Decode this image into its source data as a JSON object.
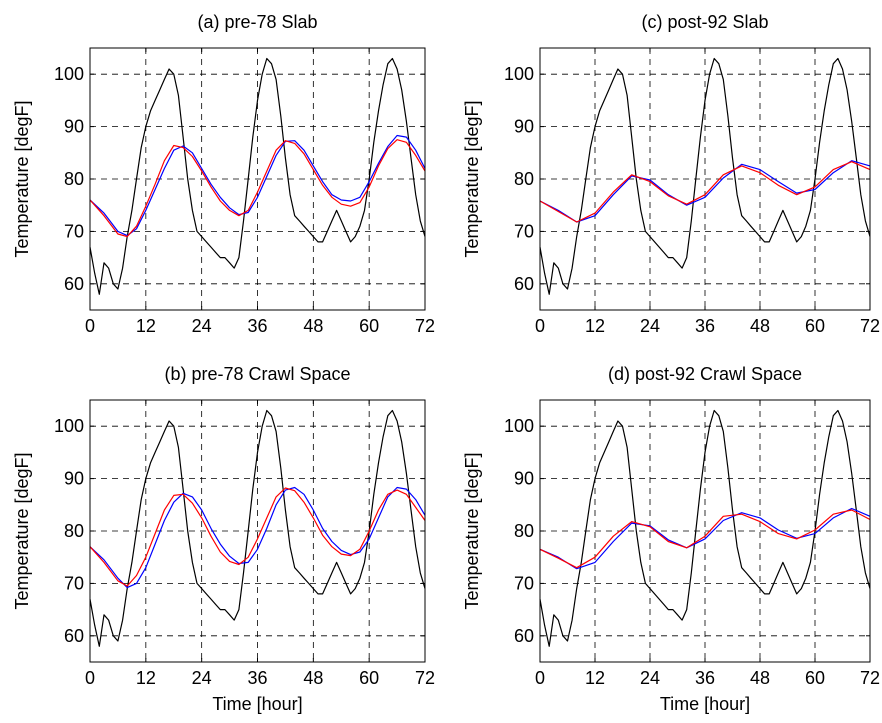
{
  "chart_data": [
    {
      "type": "line",
      "title": "(a) pre-78 Slab",
      "xlabel": "",
      "ylabel": "Temperature [degF]",
      "xlim": [
        0,
        72
      ],
      "ylim": [
        55,
        105
      ],
      "xticks": [
        0,
        12,
        24,
        36,
        48,
        60,
        72
      ],
      "yticks": [
        60,
        70,
        80,
        90,
        100
      ],
      "grid": true,
      "series": [
        {
          "color": "#000000",
          "x": [
            0,
            1,
            2,
            3,
            4,
            5,
            6,
            7,
            8,
            9,
            10,
            11,
            12,
            13,
            14,
            15,
            16,
            17,
            18,
            19,
            20,
            21,
            22,
            23,
            24,
            25,
            26,
            27,
            28,
            29,
            30,
            31,
            32,
            33,
            34,
            35,
            36,
            37,
            38,
            39,
            40,
            41,
            42,
            43,
            44,
            45,
            46,
            47,
            48,
            49,
            50,
            51,
            52,
            53,
            54,
            55,
            56,
            57,
            58,
            59,
            60,
            61,
            62,
            63,
            64,
            65,
            66,
            67,
            68,
            69,
            70,
            71,
            72
          ],
          "values": [
            67,
            62,
            58,
            64,
            63,
            60,
            59,
            63,
            69,
            74,
            80,
            86,
            90,
            93,
            95,
            97,
            99,
            101,
            100,
            96,
            88,
            80,
            74,
            70,
            69,
            68,
            67,
            66,
            65,
            65,
            64,
            63,
            65,
            72,
            80,
            88,
            95,
            100,
            103,
            102,
            99,
            92,
            84,
            77,
            73,
            72,
            71,
            70,
            69,
            68,
            68,
            70,
            72,
            74,
            72,
            70,
            68,
            69,
            71,
            74,
            80,
            87,
            93,
            98,
            102,
            103,
            101,
            97,
            91,
            84,
            77,
            72,
            69
          ]
        },
        {
          "color": "#0000ff",
          "x": [
            0,
            3,
            6,
            8,
            10,
            12,
            14,
            16,
            18,
            20,
            22,
            24,
            26,
            28,
            30,
            32,
            34,
            36,
            38,
            40,
            42,
            44,
            46,
            48,
            50,
            52,
            54,
            56,
            58,
            60,
            62,
            64,
            66,
            68,
            70,
            72
          ],
          "values": [
            76,
            73.5,
            70,
            69.2,
            70.5,
            74,
            78,
            82,
            85.5,
            86.3,
            85,
            82,
            79,
            76.5,
            74.5,
            73.2,
            73.6,
            76.5,
            80.5,
            84.5,
            87.2,
            87.3,
            85.5,
            82.5,
            79.5,
            77,
            76,
            75.8,
            76.5,
            79.5,
            83,
            86.2,
            88.3,
            88,
            85.5,
            82
          ]
        },
        {
          "color": "#ff0000",
          "x": [
            0,
            3,
            6,
            8,
            10,
            12,
            14,
            16,
            18,
            20,
            22,
            24,
            26,
            28,
            30,
            32,
            34,
            36,
            38,
            40,
            42,
            44,
            46,
            48,
            50,
            52,
            54,
            56,
            58,
            60,
            62,
            64,
            66,
            68,
            70,
            72
          ],
          "values": [
            76,
            73,
            69.5,
            69,
            71,
            74.8,
            79,
            83.5,
            86.4,
            86,
            84.3,
            81.5,
            78.5,
            75.8,
            74,
            73,
            74,
            77.5,
            81.5,
            85.5,
            87.3,
            86.8,
            84.8,
            81.8,
            78.8,
            76.5,
            75.2,
            74.8,
            75.5,
            78.5,
            82.5,
            85.8,
            87.5,
            87,
            84.5,
            81.5
          ]
        }
      ]
    },
    {
      "type": "line",
      "title": "(c) post-92 Slab",
      "xlabel": "",
      "ylabel": "Temperature [degF]",
      "xlim": [
        0,
        72
      ],
      "ylim": [
        55,
        105
      ],
      "xticks": [
        0,
        12,
        24,
        36,
        48,
        60,
        72
      ],
      "yticks": [
        60,
        70,
        80,
        90,
        100
      ],
      "grid": true,
      "series": [
        {
          "color": "#000000",
          "x": [
            0,
            1,
            2,
            3,
            4,
            5,
            6,
            7,
            8,
            9,
            10,
            11,
            12,
            13,
            14,
            15,
            16,
            17,
            18,
            19,
            20,
            21,
            22,
            23,
            24,
            25,
            26,
            27,
            28,
            29,
            30,
            31,
            32,
            33,
            34,
            35,
            36,
            37,
            38,
            39,
            40,
            41,
            42,
            43,
            44,
            45,
            46,
            47,
            48,
            49,
            50,
            51,
            52,
            53,
            54,
            55,
            56,
            57,
            58,
            59,
            60,
            61,
            62,
            63,
            64,
            65,
            66,
            67,
            68,
            69,
            70,
            71,
            72
          ],
          "values": [
            67,
            62,
            58,
            64,
            63,
            60,
            59,
            63,
            69,
            74,
            80,
            86,
            90,
            93,
            95,
            97,
            99,
            101,
            100,
            96,
            88,
            80,
            74,
            70,
            69,
            68,
            67,
            66,
            65,
            65,
            64,
            63,
            65,
            72,
            80,
            88,
            95,
            100,
            103,
            102,
            99,
            92,
            84,
            77,
            73,
            72,
            71,
            70,
            69,
            68,
            68,
            70,
            72,
            74,
            72,
            70,
            68,
            69,
            71,
            74,
            80,
            87,
            93,
            98,
            102,
            103,
            101,
            97,
            91,
            84,
            77,
            72,
            69
          ]
        },
        {
          "color": "#0000ff",
          "x": [
            0,
            4,
            8,
            12,
            16,
            20,
            24,
            28,
            32,
            36,
            40,
            44,
            48,
            52,
            56,
            60,
            64,
            68,
            72
          ],
          "values": [
            75.8,
            74,
            71.8,
            73,
            77,
            80.6,
            79.8,
            77,
            75,
            76.5,
            80.2,
            82.8,
            81.8,
            79.5,
            77.3,
            78,
            81.2,
            83.5,
            82.5
          ]
        },
        {
          "color": "#ff0000",
          "x": [
            0,
            4,
            8,
            12,
            16,
            20,
            24,
            28,
            32,
            36,
            40,
            44,
            48,
            52,
            56,
            60,
            64,
            68,
            72
          ],
          "values": [
            75.8,
            73.8,
            71.8,
            73.5,
            77.5,
            80.8,
            79.5,
            76.8,
            75.2,
            77,
            80.8,
            82.5,
            81.2,
            78.8,
            77,
            78.5,
            81.8,
            83.3,
            81.8
          ]
        }
      ]
    },
    {
      "type": "line",
      "title": "(b) pre-78 Crawl Space",
      "xlabel": "Time [hour]",
      "ylabel": "Temperature [degF]",
      "xlim": [
        0,
        72
      ],
      "ylim": [
        55,
        105
      ],
      "xticks": [
        0,
        12,
        24,
        36,
        48,
        60,
        72
      ],
      "yticks": [
        60,
        70,
        80,
        90,
        100
      ],
      "grid": true,
      "series": [
        {
          "color": "#000000",
          "x": [
            0,
            1,
            2,
            3,
            4,
            5,
            6,
            7,
            8,
            9,
            10,
            11,
            12,
            13,
            14,
            15,
            16,
            17,
            18,
            19,
            20,
            21,
            22,
            23,
            24,
            25,
            26,
            27,
            28,
            29,
            30,
            31,
            32,
            33,
            34,
            35,
            36,
            37,
            38,
            39,
            40,
            41,
            42,
            43,
            44,
            45,
            46,
            47,
            48,
            49,
            50,
            51,
            52,
            53,
            54,
            55,
            56,
            57,
            58,
            59,
            60,
            61,
            62,
            63,
            64,
            65,
            66,
            67,
            68,
            69,
            70,
            71,
            72
          ],
          "values": [
            67,
            62,
            58,
            64,
            63,
            60,
            59,
            63,
            69,
            74,
            80,
            86,
            90,
            93,
            95,
            97,
            99,
            101,
            100,
            96,
            88,
            80,
            74,
            70,
            69,
            68,
            67,
            66,
            65,
            65,
            64,
            63,
            65,
            72,
            80,
            88,
            95,
            100,
            103,
            102,
            99,
            92,
            84,
            77,
            73,
            72,
            71,
            70,
            69,
            68,
            68,
            70,
            72,
            74,
            72,
            70,
            68,
            69,
            71,
            74,
            80,
            87,
            93,
            98,
            102,
            103,
            101,
            97,
            91,
            84,
            77,
            72,
            69
          ]
        },
        {
          "color": "#0000ff",
          "x": [
            0,
            3,
            6,
            8,
            10,
            12,
            14,
            16,
            18,
            20,
            22,
            24,
            26,
            28,
            30,
            32,
            34,
            36,
            38,
            40,
            42,
            44,
            46,
            48,
            50,
            52,
            54,
            56,
            58,
            60,
            62,
            64,
            66,
            68,
            70,
            72
          ],
          "values": [
            77,
            74.5,
            71,
            69.2,
            70,
            73,
            77.5,
            82,
            85.5,
            87.2,
            86.5,
            84,
            80.5,
            77.5,
            75.2,
            73.8,
            74,
            76.5,
            80.5,
            85,
            87.8,
            88.3,
            87,
            84,
            80.5,
            78,
            76.3,
            75.5,
            76,
            78.5,
            82.5,
            86.5,
            88.3,
            88,
            86,
            83
          ]
        },
        {
          "color": "#ff0000",
          "x": [
            0,
            3,
            6,
            8,
            10,
            12,
            14,
            16,
            18,
            20,
            22,
            24,
            26,
            28,
            30,
            32,
            34,
            36,
            38,
            40,
            42,
            44,
            46,
            48,
            50,
            52,
            54,
            56,
            58,
            60,
            62,
            64,
            66,
            68,
            70,
            72
          ],
          "values": [
            77,
            74,
            70.5,
            69.5,
            71.5,
            75,
            79.5,
            84,
            86.8,
            87,
            85.3,
            82.5,
            79,
            76,
            74.2,
            73.6,
            75,
            78.5,
            82.5,
            86.5,
            88.2,
            87.7,
            85.5,
            82.5,
            79.2,
            77,
            75.6,
            75.3,
            76.5,
            80,
            84,
            87,
            87.8,
            87,
            84.5,
            82
          ]
        }
      ]
    },
    {
      "type": "line",
      "title": "(d) post-92 Crawl Space",
      "xlabel": "Time [hour]",
      "ylabel": "Temperature [degF]",
      "xlim": [
        0,
        72
      ],
      "ylim": [
        55,
        105
      ],
      "xticks": [
        0,
        12,
        24,
        36,
        48,
        60,
        72
      ],
      "yticks": [
        60,
        70,
        80,
        90,
        100
      ],
      "grid": true,
      "series": [
        {
          "color": "#000000",
          "x": [
            0,
            1,
            2,
            3,
            4,
            5,
            6,
            7,
            8,
            9,
            10,
            11,
            12,
            13,
            14,
            15,
            16,
            17,
            18,
            19,
            20,
            21,
            22,
            23,
            24,
            25,
            26,
            27,
            28,
            29,
            30,
            31,
            32,
            33,
            34,
            35,
            36,
            37,
            38,
            39,
            40,
            41,
            42,
            43,
            44,
            45,
            46,
            47,
            48,
            49,
            50,
            51,
            52,
            53,
            54,
            55,
            56,
            57,
            58,
            59,
            60,
            61,
            62,
            63,
            64,
            65,
            66,
            67,
            68,
            69,
            70,
            71,
            72
          ],
          "values": [
            67,
            62,
            58,
            64,
            63,
            60,
            59,
            63,
            69,
            74,
            80,
            86,
            90,
            93,
            95,
            97,
            99,
            101,
            100,
            96,
            88,
            80,
            74,
            70,
            69,
            68,
            67,
            66,
            65,
            65,
            64,
            63,
            65,
            72,
            80,
            88,
            95,
            100,
            103,
            102,
            99,
            92,
            84,
            77,
            73,
            72,
            71,
            70,
            69,
            68,
            68,
            70,
            72,
            74,
            72,
            70,
            68,
            69,
            71,
            74,
            80,
            87,
            93,
            98,
            102,
            103,
            101,
            97,
            91,
            84,
            77,
            72,
            69
          ]
        },
        {
          "color": "#0000ff",
          "x": [
            0,
            4,
            8,
            12,
            16,
            20,
            24,
            28,
            32,
            36,
            40,
            44,
            48,
            52,
            56,
            60,
            64,
            68,
            72
          ],
          "values": [
            76.5,
            75,
            72.8,
            74,
            78,
            81.5,
            81,
            78.3,
            76.8,
            78.5,
            82,
            83.5,
            82.5,
            80.2,
            78.6,
            79.5,
            82.5,
            84.3,
            82.8
          ]
        },
        {
          "color": "#ff0000",
          "x": [
            0,
            4,
            8,
            12,
            16,
            20,
            24,
            28,
            32,
            36,
            40,
            44,
            48,
            52,
            56,
            60,
            64,
            68,
            72
          ],
          "values": [
            76.5,
            74.8,
            73,
            75,
            79,
            81.8,
            80.8,
            78,
            76.8,
            79,
            82.8,
            83.2,
            81.8,
            79.5,
            78.5,
            80.2,
            83.2,
            84,
            82.2
          ]
        }
      ]
    }
  ]
}
